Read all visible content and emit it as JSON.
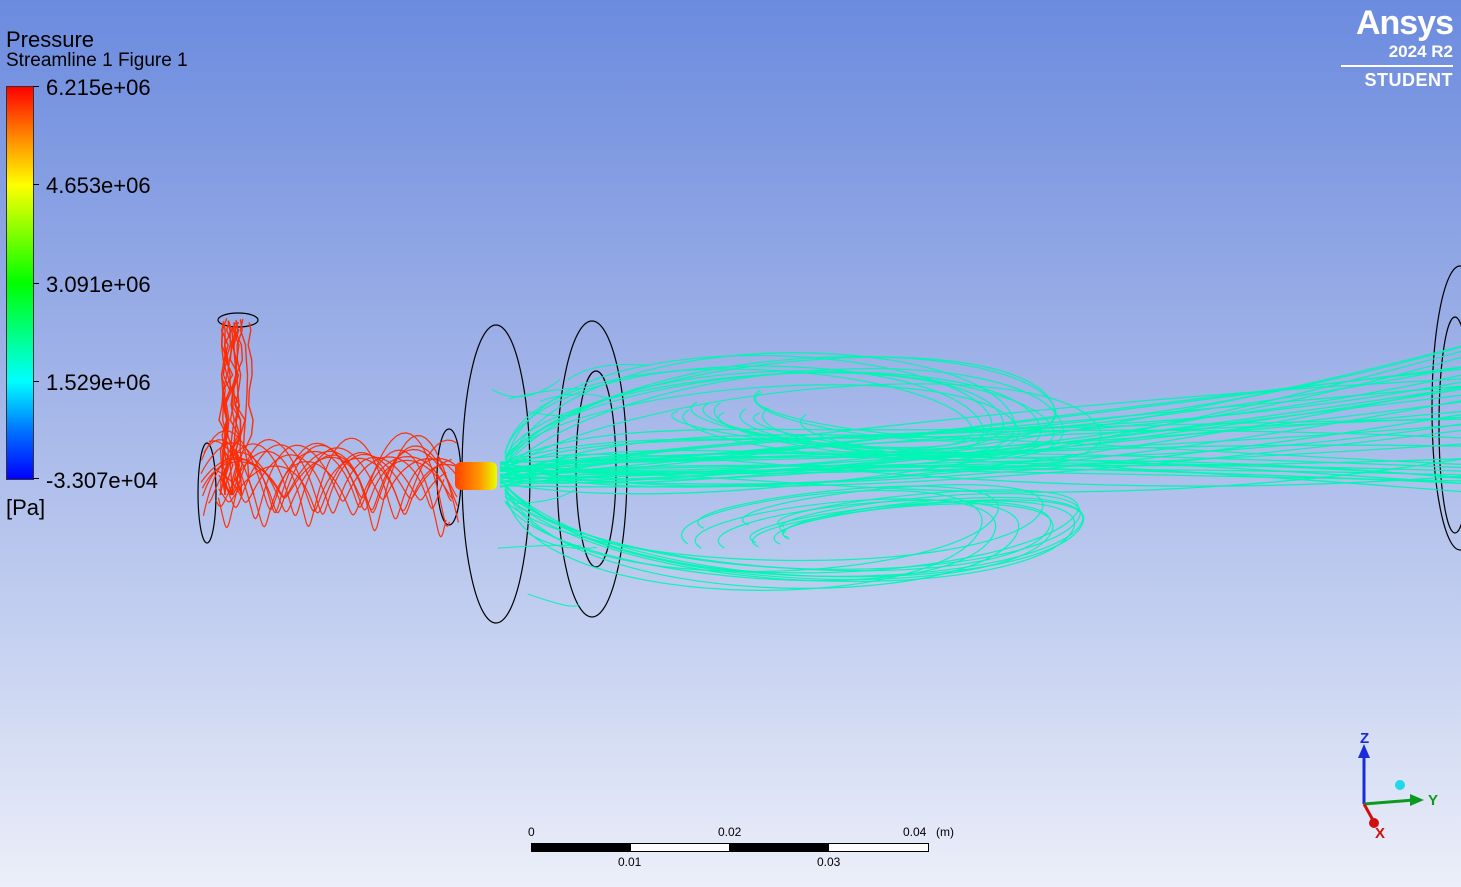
{
  "legend": {
    "title": "Pressure",
    "subtitle": "Streamline 1 Figure 1",
    "ticks": [
      "6.215e+06",
      "4.653e+06",
      "3.091e+06",
      "1.529e+06",
      "-3.307e+04"
    ],
    "units": "[Pa]",
    "colormap": [
      "#ff0000",
      "#ff8000",
      "#ffff00",
      "#00ff00",
      "#00ffff",
      "#0070ff",
      "#0000ff"
    ]
  },
  "logo": {
    "brand": "Ansys",
    "version": "2024 R2",
    "edition": "STUDENT"
  },
  "scale": {
    "top_labels": [
      "0",
      "0.02",
      "0.04"
    ],
    "bottom_labels": [
      "0.01",
      "0.03"
    ],
    "unit": "(m)"
  },
  "triad": {
    "z": "Z",
    "y": "Y",
    "x": "X"
  },
  "colors": {
    "high_pressure_streamlines": "#ff2a00",
    "low_pressure_streamlines": "#00f5b4",
    "outline": "#000000"
  }
}
